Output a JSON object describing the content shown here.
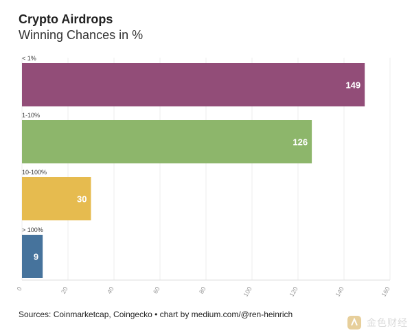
{
  "chart_data": {
    "type": "bar",
    "orientation": "horizontal",
    "title": "Crypto Airdrops",
    "subtitle": "Winning Chances in %",
    "categories": [
      "< 1%",
      "1-10%",
      "10-100%",
      "> 100%"
    ],
    "values": [
      149,
      126,
      30,
      9
    ],
    "colors": [
      "#924d78",
      "#8db66b",
      "#e6bb4f",
      "#46739c"
    ],
    "xlim": [
      0,
      160
    ],
    "xticks": [
      0,
      20,
      40,
      60,
      80,
      100,
      120,
      140,
      160
    ],
    "grid": true,
    "source": "Sources: Coinmarketcap, Coingecko • chart by medium.com/@ren-heinrich"
  },
  "watermark": {
    "text": "金色财经",
    "icon": "golden-logo-icon"
  }
}
